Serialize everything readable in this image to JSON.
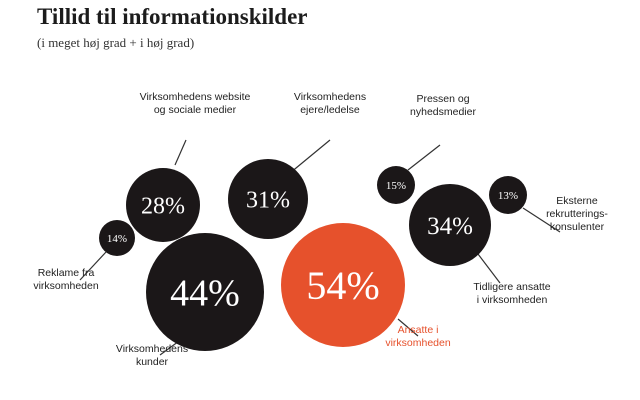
{
  "chart_data": {
    "type": "bubble",
    "title": "Tillid til informationskilder",
    "subtitle": "(i meget høj grad + i høj grad)",
    "unit": "%",
    "colors": {
      "default": "#1b1718",
      "highlight": "#e6512c",
      "label": "#222222",
      "highlight_label": "#e6512c",
      "leader": "#333333"
    },
    "bubbles": [
      {
        "label": "Virksomhedens website og sociale medier",
        "value": 28
      },
      {
        "label": "Virksomhedens ejere/ledelse",
        "value": 31
      },
      {
        "label": "Pressen og nyhedsmedier",
        "value": 15
      },
      {
        "label": "Reklame fra virksomheden",
        "value": 14
      },
      {
        "label": "Virksomhedens kunder",
        "value": 44
      },
      {
        "label": "Ansatte i virksomheden",
        "value": 54,
        "highlight": true
      },
      {
        "label": "Tidligere ansatte i virksomheden",
        "value": 34
      },
      {
        "label": "Eksterne rekrutterings-konsulenter",
        "value": 13
      }
    ],
    "label_lines": [
      [
        "Virksomhedens website",
        "og sociale medier"
      ],
      [
        "Virksomhedens",
        "ejere/ledelse"
      ],
      [
        "Pressen og",
        "nyhedsmedier"
      ],
      [
        "Reklame fra",
        "virksomheden"
      ],
      [
        "Virksomhedens",
        "kunder"
      ],
      [
        "Ansatte i",
        "virksomheden"
      ],
      [
        "Tidligere ansatte",
        "i virksomheden"
      ],
      [
        "Eksterne",
        "rekrutterings-",
        "konsulenter"
      ]
    ]
  }
}
